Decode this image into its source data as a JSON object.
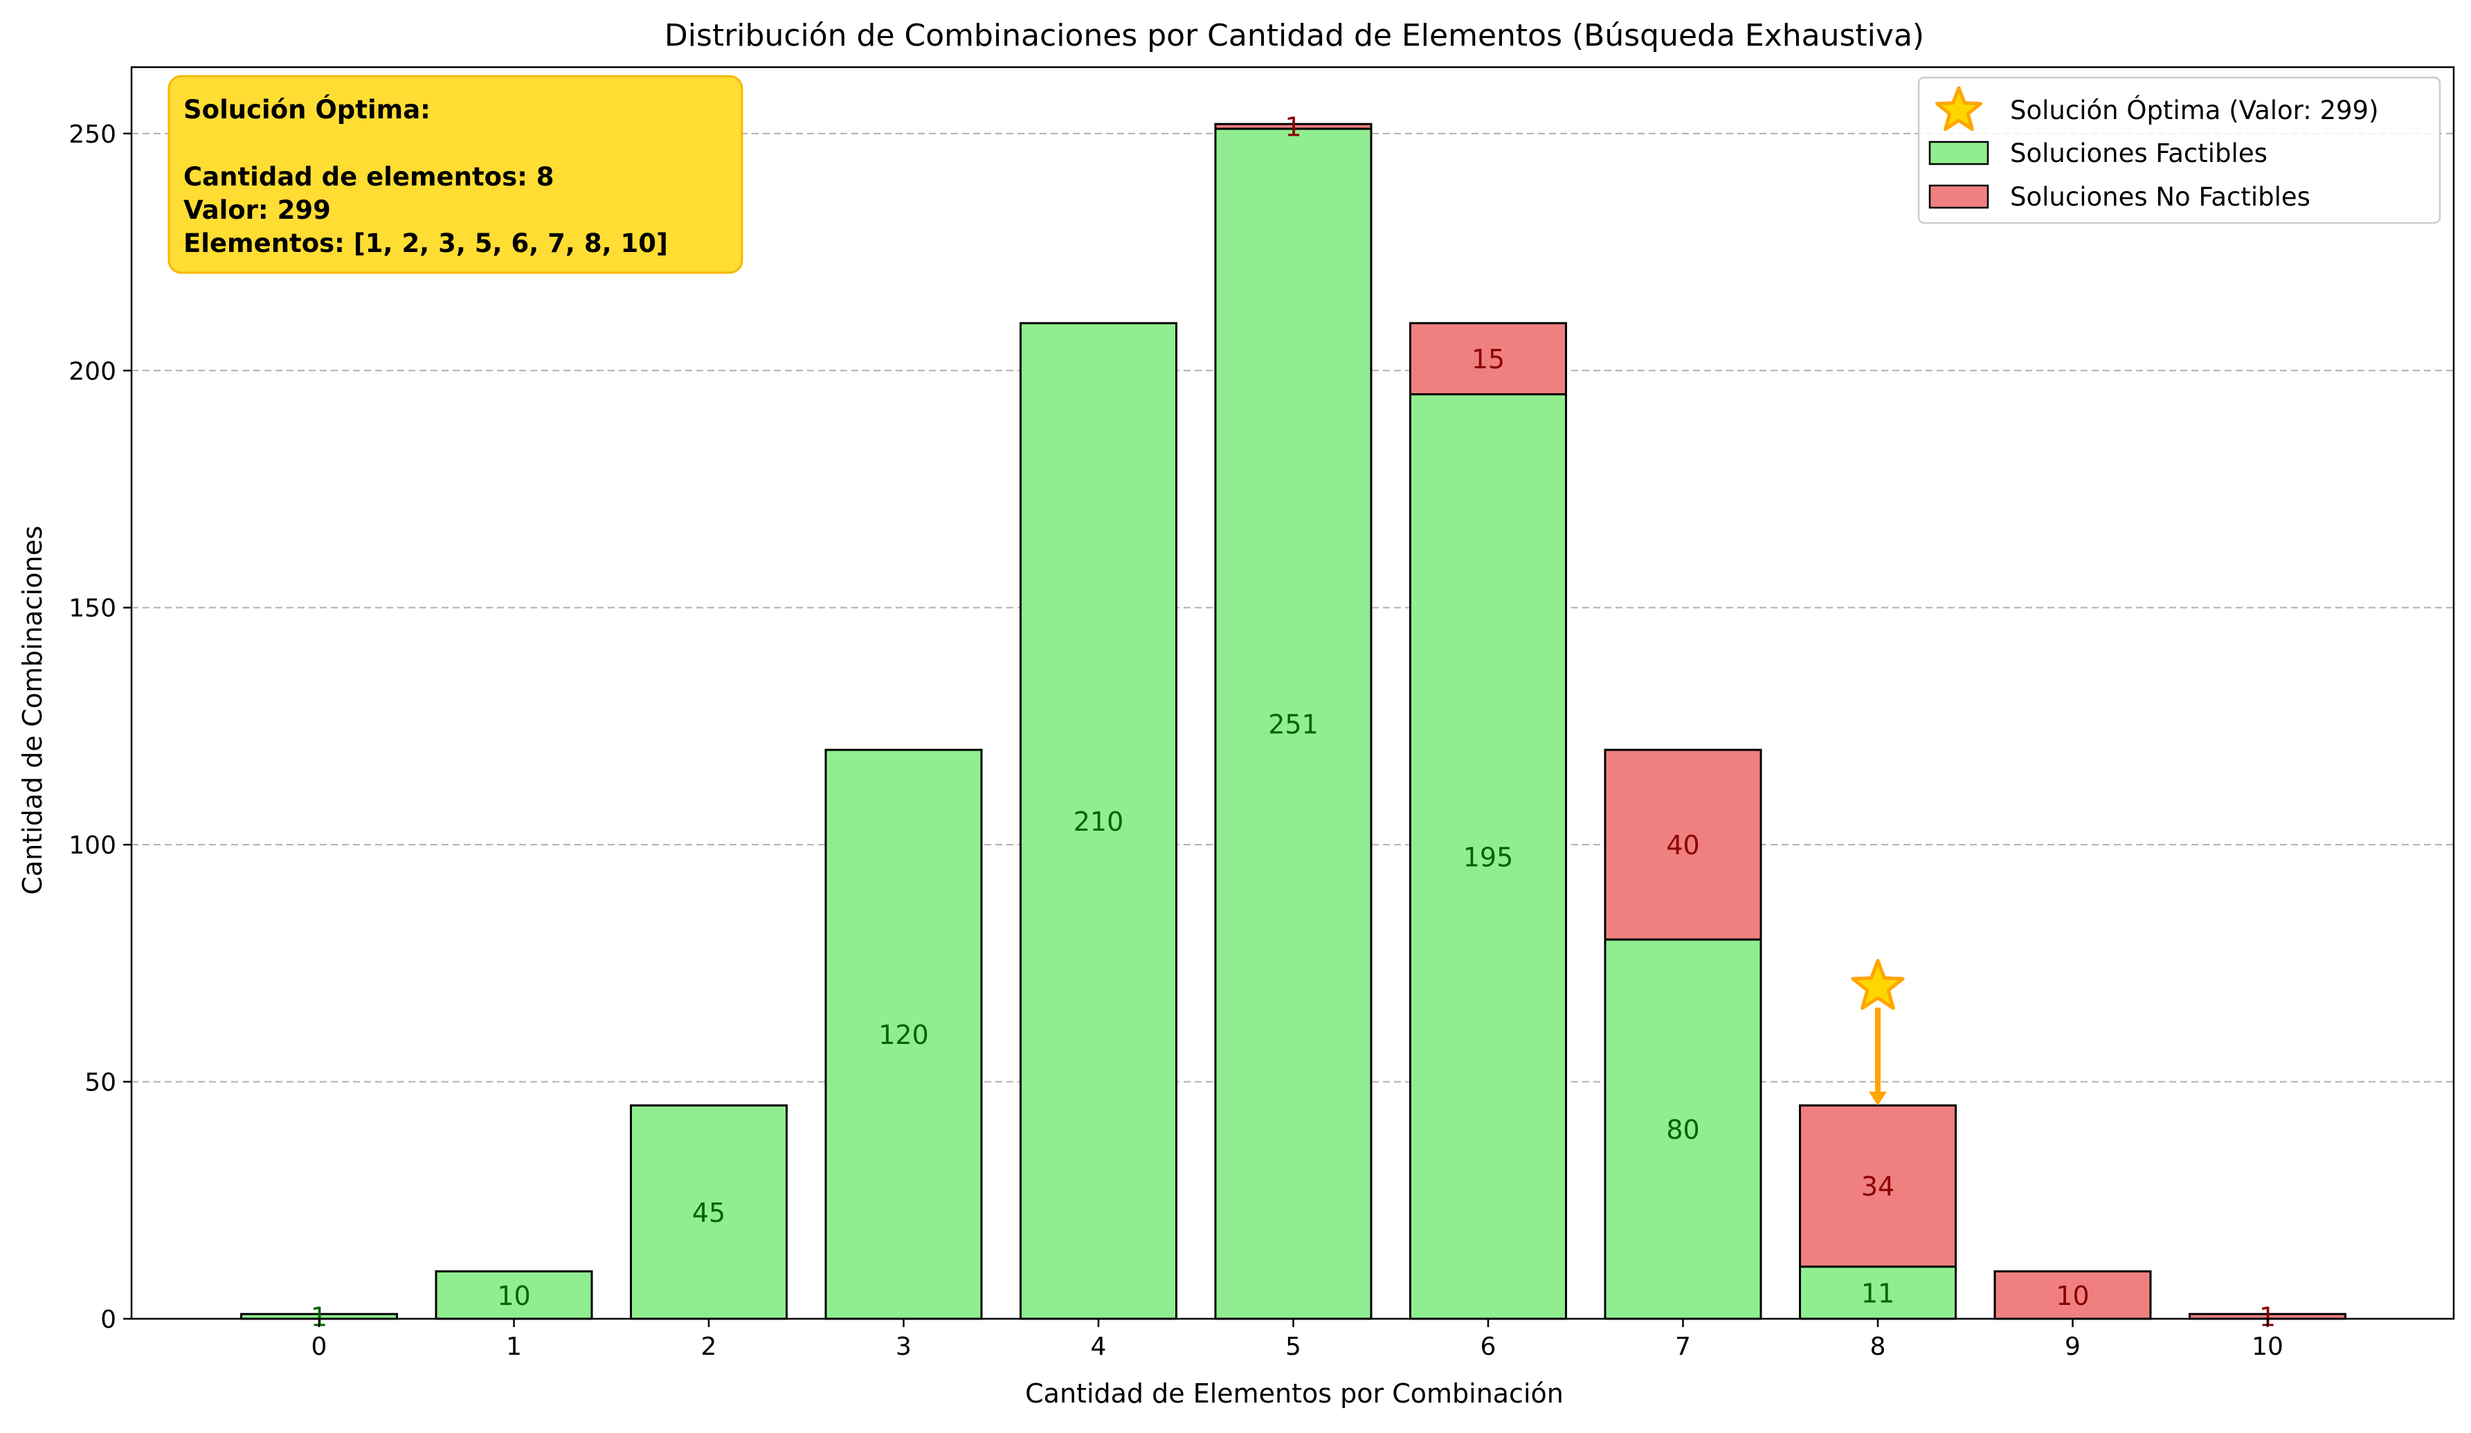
{
  "chart_data": {
    "type": "bar",
    "stacked": true,
    "title": "Distribución de Combinaciones por Cantidad de Elementos (Búsqueda Exhaustiva)",
    "xlabel": "Cantidad de Elementos por Combinación",
    "ylabel": "Cantidad de Combinaciones",
    "categories": [
      "0",
      "1",
      "2",
      "3",
      "4",
      "5",
      "6",
      "7",
      "8",
      "9",
      "10"
    ],
    "ylim": [
      0,
      264
    ],
    "yticks": [
      0,
      50,
      100,
      150,
      200,
      250
    ],
    "grid": "y dashed",
    "series": [
      {
        "name": "Soluciones Factibles",
        "color": "#90ee90",
        "label_color": "#006400",
        "values": [
          1,
          10,
          45,
          120,
          210,
          251,
          195,
          80,
          11,
          0,
          0
        ]
      },
      {
        "name": "Soluciones No Factibles",
        "color": "#f08080",
        "label_color": "#8b0000",
        "values": [
          0,
          0,
          0,
          0,
          0,
          1,
          15,
          40,
          34,
          10,
          1
        ]
      }
    ],
    "optimal_marker": {
      "legend_label": "Solución Óptima (Valor: 299)",
      "category": "8",
      "star_y": 70,
      "arrow_to_y": 45,
      "color": "#ffa500",
      "fill": "#ffd700"
    },
    "legend_position": "top-right",
    "annotation_box": {
      "lines": [
        "Solución Óptima:",
        "",
        "Cantidad de elementos: 8",
        "Valor: 299",
        "Elementos: [1, 2, 3, 5, 6, 7, 8, 10]"
      ],
      "background": "#ffdd33",
      "border": "#f5b800",
      "position": "top-left"
    }
  }
}
